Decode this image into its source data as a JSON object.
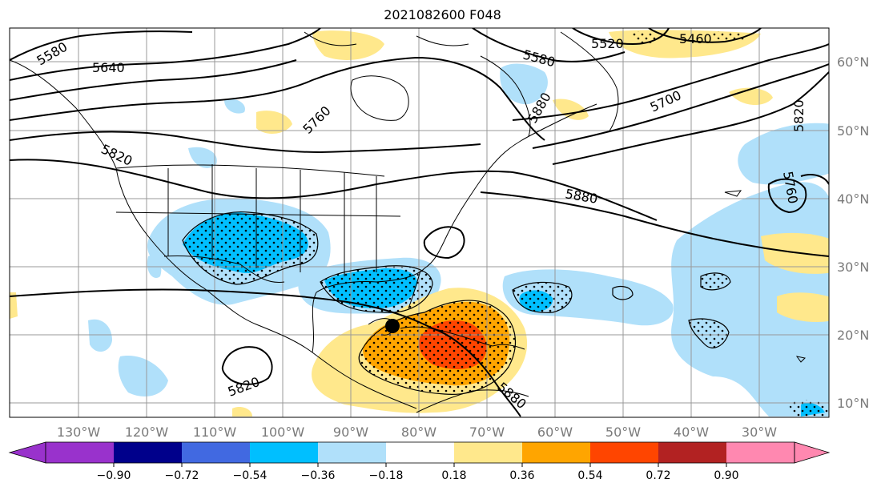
{
  "title": "2021082600 F048",
  "longitude_labels": [
    "130°W",
    "120°W",
    "110°W",
    "100°W",
    "90°W",
    "80°W",
    "70°W",
    "60°W",
    "50°W",
    "40°W",
    "30°W"
  ],
  "latitude_labels": [
    "60°N",
    "50°N",
    "40°N",
    "30°N",
    "20°N",
    "10°N"
  ],
  "contour_labels": [
    "5580",
    "5640",
    "5760",
    "5820",
    "5880",
    "5520",
    "5460",
    "5580",
    "5700",
    "5820",
    "5760",
    "5880",
    "5820",
    "5880"
  ],
  "colorbar": {
    "ticks": [
      "−0.90",
      "−0.72",
      "−0.54",
      "−0.36",
      "−0.18",
      "0.18",
      "0.36",
      "0.54",
      "0.72",
      "0.90"
    ],
    "colors": [
      "#9932cc",
      "#00008b",
      "#4169e1",
      "#00bfff",
      "#b0e0fa",
      "#ffffff",
      "#ffe88c",
      "#ffa500",
      "#ff4500",
      "#b22222",
      "#ff88b0"
    ]
  },
  "colors": {
    "light_blue": "#b0e0fa",
    "blue": "#00bfff",
    "yellow": "#ffe88c",
    "orange": "#ffa500",
    "red": "#ff4500",
    "storm_marker": "#000000"
  },
  "features": {
    "storm_marker": "filled black circle near 84°W 21°N"
  }
}
